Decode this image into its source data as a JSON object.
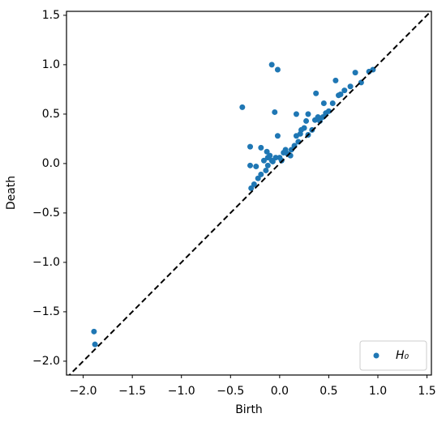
{
  "chart_data": {
    "type": "scatter",
    "xlabel": "Birth",
    "ylabel": "Death",
    "xlim": [
      -2.17,
      1.545
    ],
    "ylim": [
      -2.14,
      1.54
    ],
    "xticks": [
      {
        "value": -2,
        "label": "−2.0"
      },
      {
        "value": -1.5,
        "label": "−1.5"
      },
      {
        "value": -1,
        "label": "−1.0"
      },
      {
        "value": -0.5,
        "label": "−0.5"
      },
      {
        "value": 0,
        "label": "0.0"
      },
      0.5,
      {
        "value": 1,
        "label": "1.0"
      },
      1.5
    ],
    "yticks": [
      {
        "value": -2,
        "label": "−2.0"
      },
      {
        "value": -1.5,
        "label": "−1.5"
      },
      {
        "value": -1,
        "label": "−1.0"
      },
      {
        "value": -0.5,
        "label": "−0.5"
      },
      {
        "value": 0,
        "label": "0.0"
      },
      0.5,
      {
        "value": 1,
        "label": "1.0"
      },
      1.5
    ],
    "diagonal": true,
    "legend": "lower right",
    "series": [
      {
        "name": "H₀",
        "color": "#1f77b4",
        "x": [
          -1.88,
          -1.89,
          -0.38,
          -0.08,
          -0.02,
          -0.3,
          -0.3,
          -0.24,
          -0.19,
          -0.13,
          -0.05,
          -0.02,
          0.17,
          0.29,
          0.37,
          0.45,
          0.57,
          0.77,
          0.72,
          0.62,
          0.91,
          0.95,
          0.83,
          0.39,
          0.41,
          0.36,
          0.47,
          0.5,
          0.25,
          0.21,
          0.22,
          0.33,
          0.29,
          0.19,
          0.12,
          0.08,
          0.04,
          0.0,
          -0.04,
          -0.08,
          -0.12,
          -0.14,
          -0.19,
          -0.22,
          -0.26,
          -0.29,
          -0.12,
          -0.1,
          -0.16,
          -0.07,
          0.02,
          0.06,
          0.11,
          0.15,
          0.17,
          0.27,
          0.44,
          0.54,
          0.6,
          0.66
        ],
        "values": [
          -1.83,
          -1.7,
          0.57,
          1.0,
          0.95,
          0.17,
          -0.02,
          -0.03,
          0.16,
          0.12,
          0.52,
          0.28,
          0.5,
          0.5,
          0.71,
          0.61,
          0.84,
          0.92,
          0.78,
          0.7,
          0.93,
          0.95,
          0.82,
          0.47,
          0.43,
          0.44,
          0.51,
          0.53,
          0.36,
          0.3,
          0.34,
          0.34,
          0.29,
          0.22,
          0.14,
          0.1,
          0.11,
          0.06,
          0.06,
          0.03,
          -0.02,
          -0.07,
          -0.11,
          -0.15,
          -0.21,
          -0.25,
          0.06,
          0.08,
          0.03,
          0.02,
          0.03,
          0.14,
          0.08,
          0.18,
          0.28,
          0.43,
          0.47,
          0.61,
          0.69,
          0.74
        ]
      }
    ]
  }
}
